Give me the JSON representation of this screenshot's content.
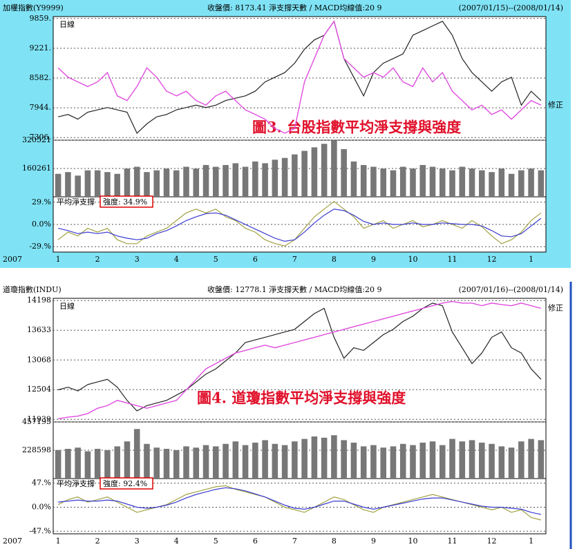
{
  "chart_data": [
    {
      "type": "line",
      "background": "#7fe3f5",
      "grid": true,
      "title": "加權指數(Y9999)",
      "header": "收盤價: 8173.41 淨支撐天數 / MACD均線值:20  9",
      "date_range": "(2007/01/15)--(2008/01/14)",
      "panel_label": "日線",
      "annotation": "圖3. 台股指數平均淨支撐與強度",
      "year_label": "2007",
      "categories": [
        "1",
        null,
        null,
        null,
        "2",
        null,
        null,
        null,
        "3",
        null,
        null,
        null,
        "4",
        null,
        null,
        null,
        "5",
        null,
        null,
        null,
        "6",
        null,
        null,
        null,
        "7",
        null,
        null,
        null,
        "8",
        null,
        null,
        null,
        "9",
        null,
        null,
        null,
        "10",
        null,
        null,
        null,
        "11",
        null,
        null,
        null,
        "12",
        null,
        null,
        null,
        "1",
        null
      ],
      "price": {
        "ylim": [
          7250,
          9900
        ],
        "yticks": [
          {
            "value": 9859,
            "label": "9859."
          },
          {
            "value": 9221,
            "label": "9221."
          },
          {
            "value": 8582,
            "label": "8582."
          },
          {
            "value": 7944,
            "label": "7944."
          },
          {
            "value": 7306,
            "label": "7306."
          }
        ],
        "series": [
          {
            "color": "#222222",
            "values": [
              7750,
              7800,
              7700,
              7850,
              7900,
              7950,
              7900,
              7850,
              7400,
              7600,
              7750,
              7800,
              7900,
              7950,
              8000,
              7950,
              8000,
              8100,
              8150,
              8200,
              8300,
              8500,
              8600,
              8700,
              8900,
              9200,
              9400,
              9500,
              9800,
              9000,
              8600,
              8200,
              8700,
              8900,
              9000,
              9100,
              9500,
              9600,
              9700,
              9800,
              9500,
              9000,
              8700,
              8500,
              8300,
              8500,
              8600,
              8000,
              8300,
              8100
            ]
          },
          {
            "name": "修正",
            "color": "#e04ce0",
            "values": [
              8800,
              8600,
              8500,
              8400,
              8500,
              8700,
              8200,
              8100,
              8400,
              8800,
              8600,
              8300,
              8200,
              8300,
              8100,
              8000,
              8200,
              8300,
              8100,
              7900,
              7800,
              7700,
              7500,
              7400,
              7500,
              8500,
              9000,
              9500,
              9800,
              9000,
              8800,
              8600,
              8700,
              8600,
              8800,
              8500,
              8400,
              8800,
              8500,
              8700,
              8300,
              8100,
              7900,
              8000,
              7800,
              7900,
              7700,
              7900,
              8100,
              8000
            ]
          }
        ]
      },
      "volume": {
        "ylim": [
          0,
          320521
        ],
        "yticks": [
          320521,
          160261
        ],
        "color": "#777777",
        "values": [
          130000,
          140000,
          120000,
          150000,
          150000,
          140000,
          130000,
          160000,
          170000,
          140000,
          150000,
          160000,
          150000,
          170000,
          160000,
          180000,
          170000,
          180000,
          190000,
          170000,
          200000,
          190000,
          210000,
          220000,
          240000,
          260000,
          280000,
          300000,
          320000,
          270000,
          200000,
          180000,
          170000,
          160000,
          150000,
          170000,
          160000,
          180000,
          170000,
          160000,
          150000,
          170000,
          160000,
          150000,
          140000,
          160000,
          130000,
          150000,
          160000,
          150000
        ]
      },
      "indicator": {
        "label": "平均淨支撐",
        "strength": "強度: 34.9%",
        "ylim": [
          -36,
          36
        ],
        "yticks": [
          {
            "value": 29,
            "label": "29.%"
          },
          {
            "value": 0,
            "label": "0.0%"
          },
          {
            "value": -29,
            "label": "-29.%"
          }
        ],
        "series": [
          {
            "color": "#a0a040",
            "values": [
              -20,
              -10,
              -15,
              -5,
              -10,
              -5,
              -20,
              -25,
              -25,
              -15,
              -10,
              -5,
              5,
              15,
              20,
              15,
              20,
              10,
              5,
              -5,
              -10,
              -20,
              -25,
              -28,
              -20,
              -5,
              10,
              20,
              30,
              20,
              10,
              -5,
              0,
              5,
              -5,
              0,
              5,
              -3,
              0,
              5,
              0,
              -5,
              5,
              -3,
              -15,
              -25,
              -20,
              -10,
              5,
              15
            ]
          },
          {
            "color": "#3a3ad0",
            "values": [
              -5,
              -8,
              -12,
              -10,
              -12,
              -10,
              -15,
              -18,
              -20,
              -18,
              -12,
              -8,
              -2,
              5,
              10,
              14,
              15,
              12,
              6,
              0,
              -6,
              -12,
              -18,
              -22,
              -20,
              -10,
              2,
              12,
              20,
              18,
              12,
              4,
              0,
              2,
              0,
              0,
              2,
              0,
              0,
              2,
              1,
              0,
              0,
              -2,
              -8,
              -15,
              -16,
              -12,
              -2,
              8
            ]
          }
        ]
      }
    },
    {
      "type": "line",
      "background": "#ffffff",
      "grid": true,
      "title": "道瓊指數(INDU)",
      "header": "收盤價: 12778.1 淨支撐天數 / MACD均線值:20  9",
      "date_range": "(2007/01/16)--(2008/01/14)",
      "panel_label": "日線",
      "annotation": "圖4. 道瓊指數平均淨支撐與強度",
      "year_label": "2007",
      "categories": [
        "1",
        null,
        null,
        null,
        "2",
        null,
        null,
        null,
        "3",
        null,
        null,
        null,
        "4",
        null,
        null,
        null,
        "5",
        null,
        null,
        null,
        "6",
        null,
        null,
        null,
        "7",
        null,
        null,
        null,
        "8",
        null,
        null,
        null,
        "9",
        null,
        null,
        null,
        "10",
        null,
        null,
        null,
        "11",
        null,
        null,
        null,
        "12",
        null,
        null,
        null,
        "1",
        null
      ],
      "price": {
        "ylim": [
          11890,
          14240
        ],
        "yticks": [
          14198,
          13633,
          13068,
          12504,
          11939
        ],
        "series": [
          {
            "color": "#222222",
            "values": [
              12500,
              12550,
              12480,
              12600,
              12650,
              12700,
              12550,
              12300,
              12100,
              12200,
              12250,
              12300,
              12400,
              12500,
              12650,
              12800,
              12900,
              13050,
              13200,
              13400,
              13450,
              13500,
              13550,
              13600,
              13650,
              13800,
              13950,
              14050,
              13500,
              13100,
              13300,
              13250,
              13400,
              13550,
              13650,
              13800,
              13900,
              14050,
              14150,
              14100,
              13600,
              13300,
              13000,
              13200,
              13500,
              13600,
              13300,
              13200,
              12900,
              12700
            ]
          },
          {
            "name": "修正",
            "color": "#e04ce0",
            "values": [
              11950,
              11980,
              12000,
              12050,
              12150,
              12200,
              12300,
              12250,
              12200,
              12150,
              12200,
              12250,
              12300,
              12500,
              12700,
              12900,
              13000,
              13100,
              13200,
              13250,
              13300,
              13350,
              13300,
              13350,
              13400,
              13450,
              13500,
              13550,
              13600,
              13650,
              13700,
              13750,
              13800,
              13850,
              13900,
              13950,
              14000,
              14050,
              14100,
              14150,
              14180,
              14150,
              14150,
              14100,
              14150,
              14120,
              14100,
              14150,
              14100,
              14050
            ]
          }
        ]
      },
      "volume": {
        "ylim": [
          0,
          457195
        ],
        "yticks": [
          457195,
          228598
        ],
        "color": "#777777",
        "values": [
          230000,
          240000,
          250000,
          220000,
          240000,
          230000,
          260000,
          300000,
          400000,
          280000,
          250000,
          240000,
          230000,
          260000,
          250000,
          270000,
          260000,
          280000,
          300000,
          270000,
          290000,
          310000,
          280000,
          270000,
          300000,
          320000,
          340000,
          330000,
          350000,
          310000,
          290000,
          260000,
          270000,
          250000,
          260000,
          280000,
          270000,
          290000,
          300000,
          270000,
          320000,
          300000,
          310000,
          290000,
          280000,
          260000,
          250000,
          300000,
          320000,
          310000
        ]
      },
      "indicator": {
        "label": "平均淨支撐",
        "strength": "強度: 92.4%",
        "ylim": [
          -52,
          56
        ],
        "yticks": [
          {
            "value": 47,
            "label": "47.%"
          },
          {
            "value": 0,
            "label": "0.0%"
          },
          {
            "value": -47,
            "label": "-47.%"
          }
        ],
        "series": [
          {
            "color": "#a0a040",
            "values": [
              5,
              15,
              20,
              10,
              15,
              20,
              10,
              0,
              -10,
              -5,
              0,
              5,
              15,
              25,
              30,
              35,
              40,
              42,
              35,
              30,
              25,
              20,
              10,
              0,
              -5,
              -10,
              0,
              10,
              20,
              15,
              5,
              -5,
              -10,
              0,
              5,
              10,
              15,
              20,
              25,
              20,
              15,
              10,
              5,
              0,
              -5,
              0,
              -10,
              -5,
              -20,
              -25
            ]
          },
          {
            "color": "#3a3ad0",
            "values": [
              10,
              12,
              14,
              12,
              12,
              14,
              12,
              6,
              0,
              -2,
              0,
              4,
              10,
              18,
              25,
              30,
              35,
              38,
              36,
              32,
              26,
              20,
              12,
              4,
              -2,
              -4,
              0,
              6,
              12,
              12,
              6,
              0,
              -4,
              0,
              4,
              8,
              12,
              16,
              18,
              18,
              14,
              10,
              6,
              2,
              0,
              0,
              -2,
              -4,
              -10,
              -14
            ]
          }
        ]
      }
    }
  ]
}
